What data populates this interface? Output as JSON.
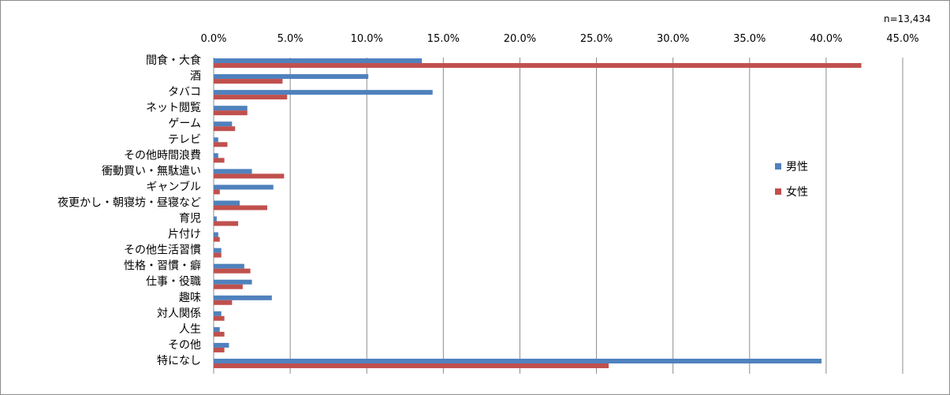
{
  "note": "n=13,434",
  "chart_data": {
    "type": "bar",
    "orientation": "horizontal",
    "categories": [
      "間食・大食",
      "酒",
      "タバコ",
      "ネット閲覧",
      "ゲーム",
      "テレビ",
      "その他時間浪費",
      "衝動買い・無駄遣い",
      "ギャンブル",
      "夜更かし・朝寝坊・昼寝など",
      "育児",
      "片付け",
      "その他生活習慣",
      "性格・習慣・癖",
      "仕事・役職",
      "趣味",
      "対人関係",
      "人生",
      "その他",
      "特になし"
    ],
    "series": [
      {
        "name": "男性",
        "color": "#4f81bd",
        "values": [
          13.6,
          10.1,
          14.3,
          2.2,
          1.2,
          0.3,
          0.3,
          2.5,
          3.9,
          1.7,
          0.2,
          0.3,
          0.5,
          2.0,
          2.5,
          3.8,
          0.5,
          0.4,
          1.0,
          39.7
        ]
      },
      {
        "name": "女性",
        "color": "#c0504d",
        "values": [
          42.3,
          4.5,
          4.8,
          2.2,
          1.4,
          0.9,
          0.7,
          4.6,
          0.4,
          3.5,
          1.6,
          0.4,
          0.5,
          2.4,
          1.9,
          1.2,
          0.7,
          0.7,
          0.7,
          25.8
        ]
      }
    ],
    "xlim": [
      0,
      45
    ],
    "xticks": [
      "0.0%",
      "5.0%",
      "10.0%",
      "15.0%",
      "20.0%",
      "25.0%",
      "30.0%",
      "35.0%",
      "40.0%",
      "45.0%"
    ],
    "grid": true,
    "legend": "right"
  }
}
